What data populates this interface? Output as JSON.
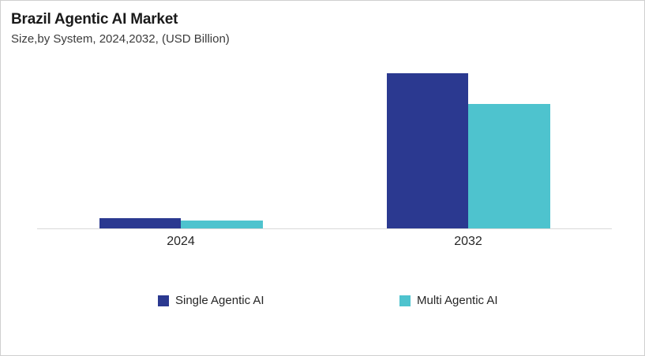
{
  "header": {
    "title": "Brazil Agentic AI Market",
    "subtitle": "Size,by System, 2024,2032, (USD Billion)"
  },
  "chart_data": {
    "type": "bar",
    "title": "Brazil Agentic AI Market",
    "subtitle": "Size,by System, 2024,2032, (USD Billion)",
    "categories": [
      "2024",
      "2032"
    ],
    "series": [
      {
        "name": "Single Agentic AI",
        "color": "#2B3990",
        "values": [
          0.13,
          1.98
        ]
      },
      {
        "name": "Multi Agentic AI",
        "color": "#4EC3CE",
        "values": [
          0.1,
          1.59
        ]
      }
    ],
    "xlabel": "",
    "ylabel": "",
    "ylim": [
      0,
      2.2
    ],
    "grid": false,
    "y_axis_labels_shown": false,
    "legend_position": "bottom",
    "axis_line_color": "#D9D9D9"
  },
  "canvas": {
    "background": "#FFFFFF",
    "border_color": "#CFCFCF"
  }
}
